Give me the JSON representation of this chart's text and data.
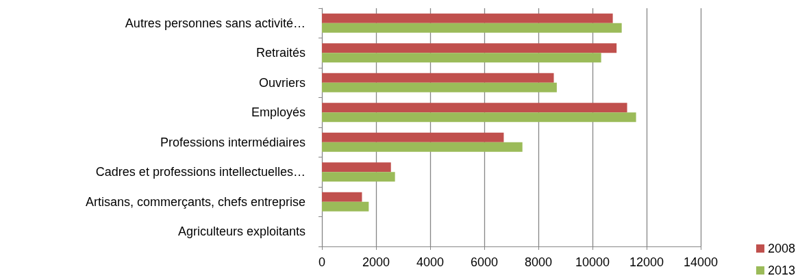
{
  "chart_data": {
    "type": "bar",
    "orientation": "horizontal",
    "categories": [
      "Autres personnes sans activité…",
      "Retraités",
      "Ouvriers",
      "Employés",
      "Professions intermédiaires",
      "Cadres et professions intellectuelles…",
      "Artisans, commerçants, chefs entreprise",
      "Agriculteurs exploitants"
    ],
    "series": [
      {
        "name": "2008",
        "color": "#c0504d",
        "values": [
          10750,
          10890,
          8570,
          11280,
          6720,
          2550,
          1480,
          0
        ]
      },
      {
        "name": "2013",
        "color": "#9bbb59",
        "values": [
          11080,
          10320,
          8680,
          11610,
          7410,
          2700,
          1730,
          0
        ]
      }
    ],
    "xlim": [
      0,
      14000
    ],
    "xticks": [
      0,
      2000,
      4000,
      6000,
      8000,
      10000,
      12000,
      14000
    ],
    "grid": "x",
    "legend": "bottom right"
  }
}
